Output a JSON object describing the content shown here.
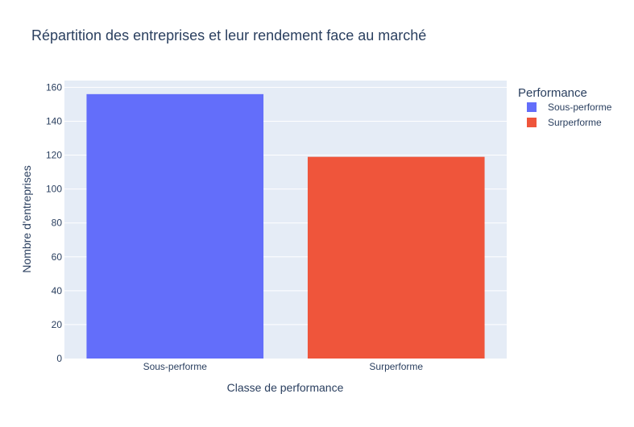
{
  "chart_data": {
    "type": "bar",
    "title": "Répartition des entreprises et leur rendement face au marché",
    "xlabel": "Classe de performance",
    "ylabel": "Nombre d'entreprises",
    "categories": [
      "Sous-performe",
      "Surperforme"
    ],
    "series": [
      {
        "name": "Sous-performe",
        "values": [
          156,
          null
        ],
        "color": "#636efa"
      },
      {
        "name": "Surperforme",
        "values": [
          null,
          119
        ],
        "color": "#EF553B"
      }
    ],
    "ylim": [
      0,
      164
    ],
    "yticks": [
      "0",
      "20",
      "40",
      "60",
      "80",
      "100",
      "120",
      "140",
      "160"
    ],
    "grid": true,
    "plot_background": "#e5ecf6",
    "legend": {
      "title": "Performance",
      "placement": "top-right",
      "items": [
        "Sous-performe",
        "Surperforme"
      ]
    }
  }
}
